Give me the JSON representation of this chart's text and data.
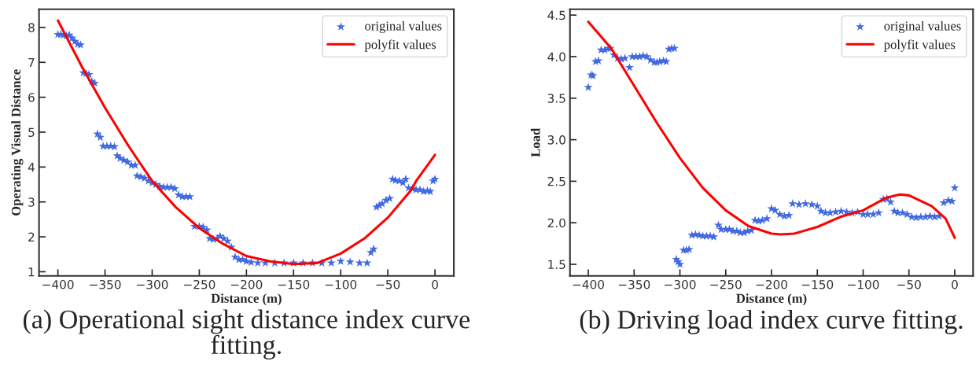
{
  "chart_data": [
    {
      "type": "scatter",
      "xlabel": "Distance (m)",
      "ylabel": "Operating Visual Distance",
      "xlim": [
        -420,
        20
      ],
      "ylim": [
        0.88,
        8.52
      ],
      "xticks": [
        {
          "value": -400,
          "label": "−400"
        },
        {
          "value": -350,
          "label": "−350"
        },
        {
          "value": -300,
          "label": "−300"
        },
        {
          "value": -250,
          "label": "−250"
        },
        {
          "value": -200,
          "label": "−200"
        },
        {
          "value": -150,
          "label": "−150"
        },
        {
          "value": -100,
          "label": "−100"
        },
        {
          "value": -50,
          "label": "−50"
        },
        0
      ],
      "yticks": [
        1,
        2,
        3,
        4,
        5,
        6,
        7,
        8
      ],
      "legend": "top right",
      "annotations": [
        "(a) Operational sight distance index curve fitting."
      ],
      "series": [
        {
          "name": "original values",
          "marker": "star",
          "color": "#4169e1",
          "x": [
            -400,
            -397,
            -394,
            -391,
            -388,
            -385,
            -382,
            -379,
            -376,
            -373,
            -370,
            -367,
            -364,
            -361,
            -358,
            -355,
            -352,
            -348,
            -344,
            -340,
            -337,
            -334,
            -330,
            -326,
            -322,
            -318,
            -316,
            -312,
            -308,
            -304,
            -300,
            -296,
            -292,
            -288,
            -284,
            -280,
            -276,
            -272,
            -268,
            -264,
            -260,
            -255,
            -250,
            -246,
            -242,
            -239,
            -235,
            -231,
            -228,
            -224,
            -220,
            -216,
            -212,
            -208,
            -204,
            -200,
            -195,
            -188,
            -180,
            -170,
            -160,
            -150,
            -140,
            -130,
            -120,
            -110,
            -100,
            -90,
            -80,
            -72,
            -68,
            -65,
            -62,
            -59,
            -56,
            -52,
            -48,
            -45,
            -42,
            -38,
            -34,
            -31,
            -28,
            -24,
            -20,
            -16,
            -12,
            -8,
            -5,
            -2,
            0
          ],
          "values": [
            7.8,
            7.8,
            7.78,
            7.76,
            7.78,
            7.7,
            7.6,
            7.52,
            7.5,
            6.7,
            6.68,
            6.65,
            6.45,
            6.4,
            4.95,
            4.85,
            4.6,
            4.6,
            4.6,
            4.58,
            4.32,
            4.25,
            4.2,
            4.15,
            4.05,
            4.05,
            3.75,
            3.72,
            3.68,
            3.6,
            3.55,
            3.5,
            3.45,
            3.42,
            3.42,
            3.42,
            3.38,
            3.2,
            3.15,
            3.15,
            3.15,
            2.3,
            2.3,
            2.28,
            2.2,
            1.95,
            1.93,
            1.95,
            2.02,
            1.95,
            1.88,
            1.7,
            1.42,
            1.35,
            1.35,
            1.3,
            1.27,
            1.25,
            1.25,
            1.25,
            1.25,
            1.25,
            1.25,
            1.25,
            1.25,
            1.25,
            1.3,
            1.28,
            1.25,
            1.25,
            1.55,
            1.65,
            2.85,
            2.9,
            2.95,
            3.05,
            3.1,
            3.65,
            3.62,
            3.6,
            3.55,
            3.65,
            3.4,
            3.38,
            3.35,
            3.35,
            3.3,
            3.32,
            3.3,
            3.6,
            3.65
          ]
        },
        {
          "name": "polyfit values",
          "type": "line",
          "color": "#ff0000",
          "x": [
            -400,
            -375,
            -350,
            -325,
            -300,
            -275,
            -250,
            -225,
            -200,
            -175,
            -150,
            -125,
            -100,
            -75,
            -50,
            -25,
            -20,
            0
          ],
          "values": [
            8.2,
            6.9,
            5.7,
            4.6,
            3.6,
            2.85,
            2.25,
            1.8,
            1.45,
            1.3,
            1.22,
            1.25,
            1.52,
            1.95,
            2.55,
            3.35,
            3.6,
            4.35
          ]
        }
      ]
    },
    {
      "type": "scatter",
      "xlabel": "Distance (m)",
      "ylabel": "Load",
      "xlim": [
        -420,
        20
      ],
      "ylim": [
        1.36,
        4.57
      ],
      "xticks": [
        {
          "value": -400,
          "label": "−400"
        },
        {
          "value": -350,
          "label": "−350"
        },
        {
          "value": -300,
          "label": "−300"
        },
        {
          "value": -250,
          "label": "−250"
        },
        {
          "value": -200,
          "label": "−200"
        },
        {
          "value": -150,
          "label": "−150"
        },
        {
          "value": -100,
          "label": "−100"
        },
        {
          "value": -50,
          "label": "−50"
        },
        0
      ],
      "yticks": [
        1.5,
        {
          "value": 2,
          "label": "2.0"
        },
        2.5,
        {
          "value": 3,
          "label": "3.0"
        },
        3.5,
        {
          "value": 4,
          "label": "4.0"
        },
        4.5
      ],
      "legend": "top right",
      "annotations": [
        "(b) Driving load index curve fitting."
      ],
      "series": [
        {
          "name": "original values",
          "marker": "star",
          "color": "#4169e1",
          "x": [
            -400,
            -397,
            -395,
            -392,
            -389,
            -386,
            -382,
            -378,
            -376,
            -372,
            -368,
            -364,
            -360,
            -355,
            -352,
            -348,
            -344,
            -340,
            -336,
            -332,
            -328,
            -325,
            -322,
            -318,
            -315,
            -312,
            -309,
            -306,
            -304,
            -302,
            -300,
            -296,
            -293,
            -290,
            -287,
            -283,
            -279,
            -275,
            -271,
            -267,
            -263,
            -258,
            -255,
            -250,
            -246,
            -242,
            -238,
            -234,
            -230,
            -226,
            -222,
            -218,
            -214,
            -210,
            -205,
            -200,
            -196,
            -191,
            -186,
            -181,
            -177,
            -170,
            -163,
            -156,
            -150,
            -146,
            -141,
            -136,
            -130,
            -124,
            -118,
            -112,
            -106,
            -100,
            -95,
            -89,
            -83,
            -78,
            -74,
            -70,
            -66,
            -62,
            -57,
            -52,
            -47,
            -42,
            -37,
            -32,
            -27,
            -22,
            -17,
            -12,
            -7,
            -3,
            0
          ],
          "values": [
            3.63,
            3.78,
            3.77,
            3.94,
            3.95,
            4.08,
            4.08,
            4.1,
            4.1,
            4.02,
            3.98,
            3.97,
            3.98,
            3.87,
            4.0,
            4.0,
            4.0,
            4.01,
            4.0,
            3.96,
            3.93,
            3.93,
            3.94,
            3.95,
            3.94,
            4.09,
            4.1,
            4.1,
            1.56,
            1.53,
            1.5,
            1.67,
            1.67,
            1.68,
            1.85,
            1.86,
            1.85,
            1.84,
            1.84,
            1.84,
            1.83,
            1.97,
            1.92,
            1.92,
            1.92,
            1.9,
            1.9,
            1.88,
            1.88,
            1.9,
            1.91,
            2.03,
            2.02,
            2.03,
            2.05,
            2.17,
            2.15,
            2.1,
            2.08,
            2.09,
            2.23,
            2.22,
            2.23,
            2.22,
            2.2,
            2.14,
            2.12,
            2.12,
            2.13,
            2.14,
            2.13,
            2.12,
            2.13,
            2.1,
            2.1,
            2.1,
            2.12,
            2.28,
            2.29,
            2.25,
            2.14,
            2.12,
            2.12,
            2.1,
            2.07,
            2.06,
            2.07,
            2.07,
            2.08,
            2.07,
            2.08,
            2.24,
            2.27,
            2.26,
            2.42
          ]
        },
        {
          "name": "polyfit values",
          "type": "line",
          "color": "#ff0000",
          "x": [
            -400,
            -375,
            -350,
            -325,
            -300,
            -275,
            -250,
            -225,
            -200,
            -190,
            -175,
            -150,
            -125,
            -100,
            -75,
            -60,
            -50,
            -25,
            -10,
            0
          ],
          "values": [
            4.42,
            4.1,
            3.65,
            3.2,
            2.78,
            2.42,
            2.15,
            1.96,
            1.87,
            1.86,
            1.87,
            1.95,
            2.07,
            2.15,
            2.3,
            2.34,
            2.33,
            2.2,
            2.05,
            1.82
          ]
        }
      ]
    }
  ]
}
